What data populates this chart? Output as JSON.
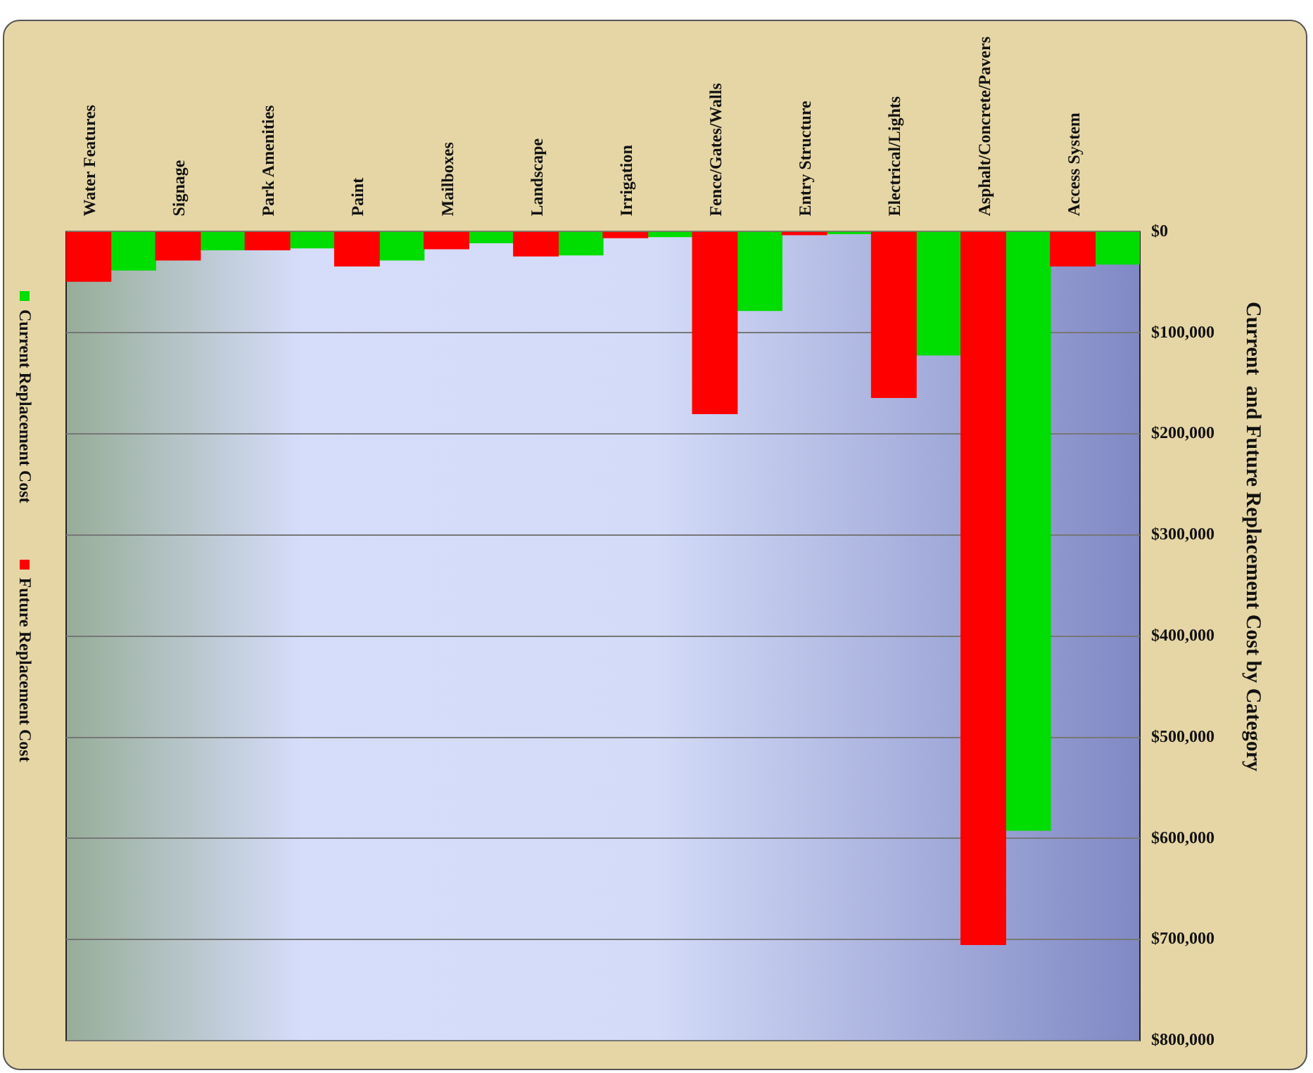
{
  "chart_data": {
    "type": "bar",
    "title": "Current  and Future Replacement Cost by Category",
    "categories": [
      "Water Features",
      "Signage",
      "Park Amenities",
      "Paint",
      "Mailboxes",
      "Landscape",
      "Irrigation",
      "Fence/Gates/Walls",
      "Entry Structure",
      "Electrical/Lights",
      "Asphalt/Concrete/Pavers",
      "Access System"
    ],
    "series": [
      {
        "name": "Future Replacement Cost",
        "color": "#ff0000",
        "values": [
          49000,
          28000,
          18000,
          34000,
          17000,
          24000,
          6000,
          180000,
          3000,
          164000,
          705000,
          34000
        ]
      },
      {
        "name": "Current Replacement Cost",
        "color": "#00dd00",
        "values": [
          38000,
          18000,
          16000,
          28000,
          11000,
          23000,
          5000,
          78000,
          2000,
          122000,
          592000,
          32000
        ]
      }
    ],
    "ylim": [
      800000,
      0
    ],
    "yticks": [
      {
        "value": 0,
        "label": "$0"
      },
      {
        "value": 100000,
        "label": "$100,000"
      },
      {
        "value": 200000,
        "label": "$200,000"
      },
      {
        "value": 300000,
        "label": "$300,000"
      },
      {
        "value": 400000,
        "label": "$400,000"
      },
      {
        "value": 500000,
        "label": "$500,000"
      },
      {
        "value": 600000,
        "label": "$600,000"
      },
      {
        "value": 700000,
        "label": "$700,000"
      },
      {
        "value": 800000,
        "label": "$800,000"
      }
    ],
    "grid": "y",
    "legend": "left"
  }
}
